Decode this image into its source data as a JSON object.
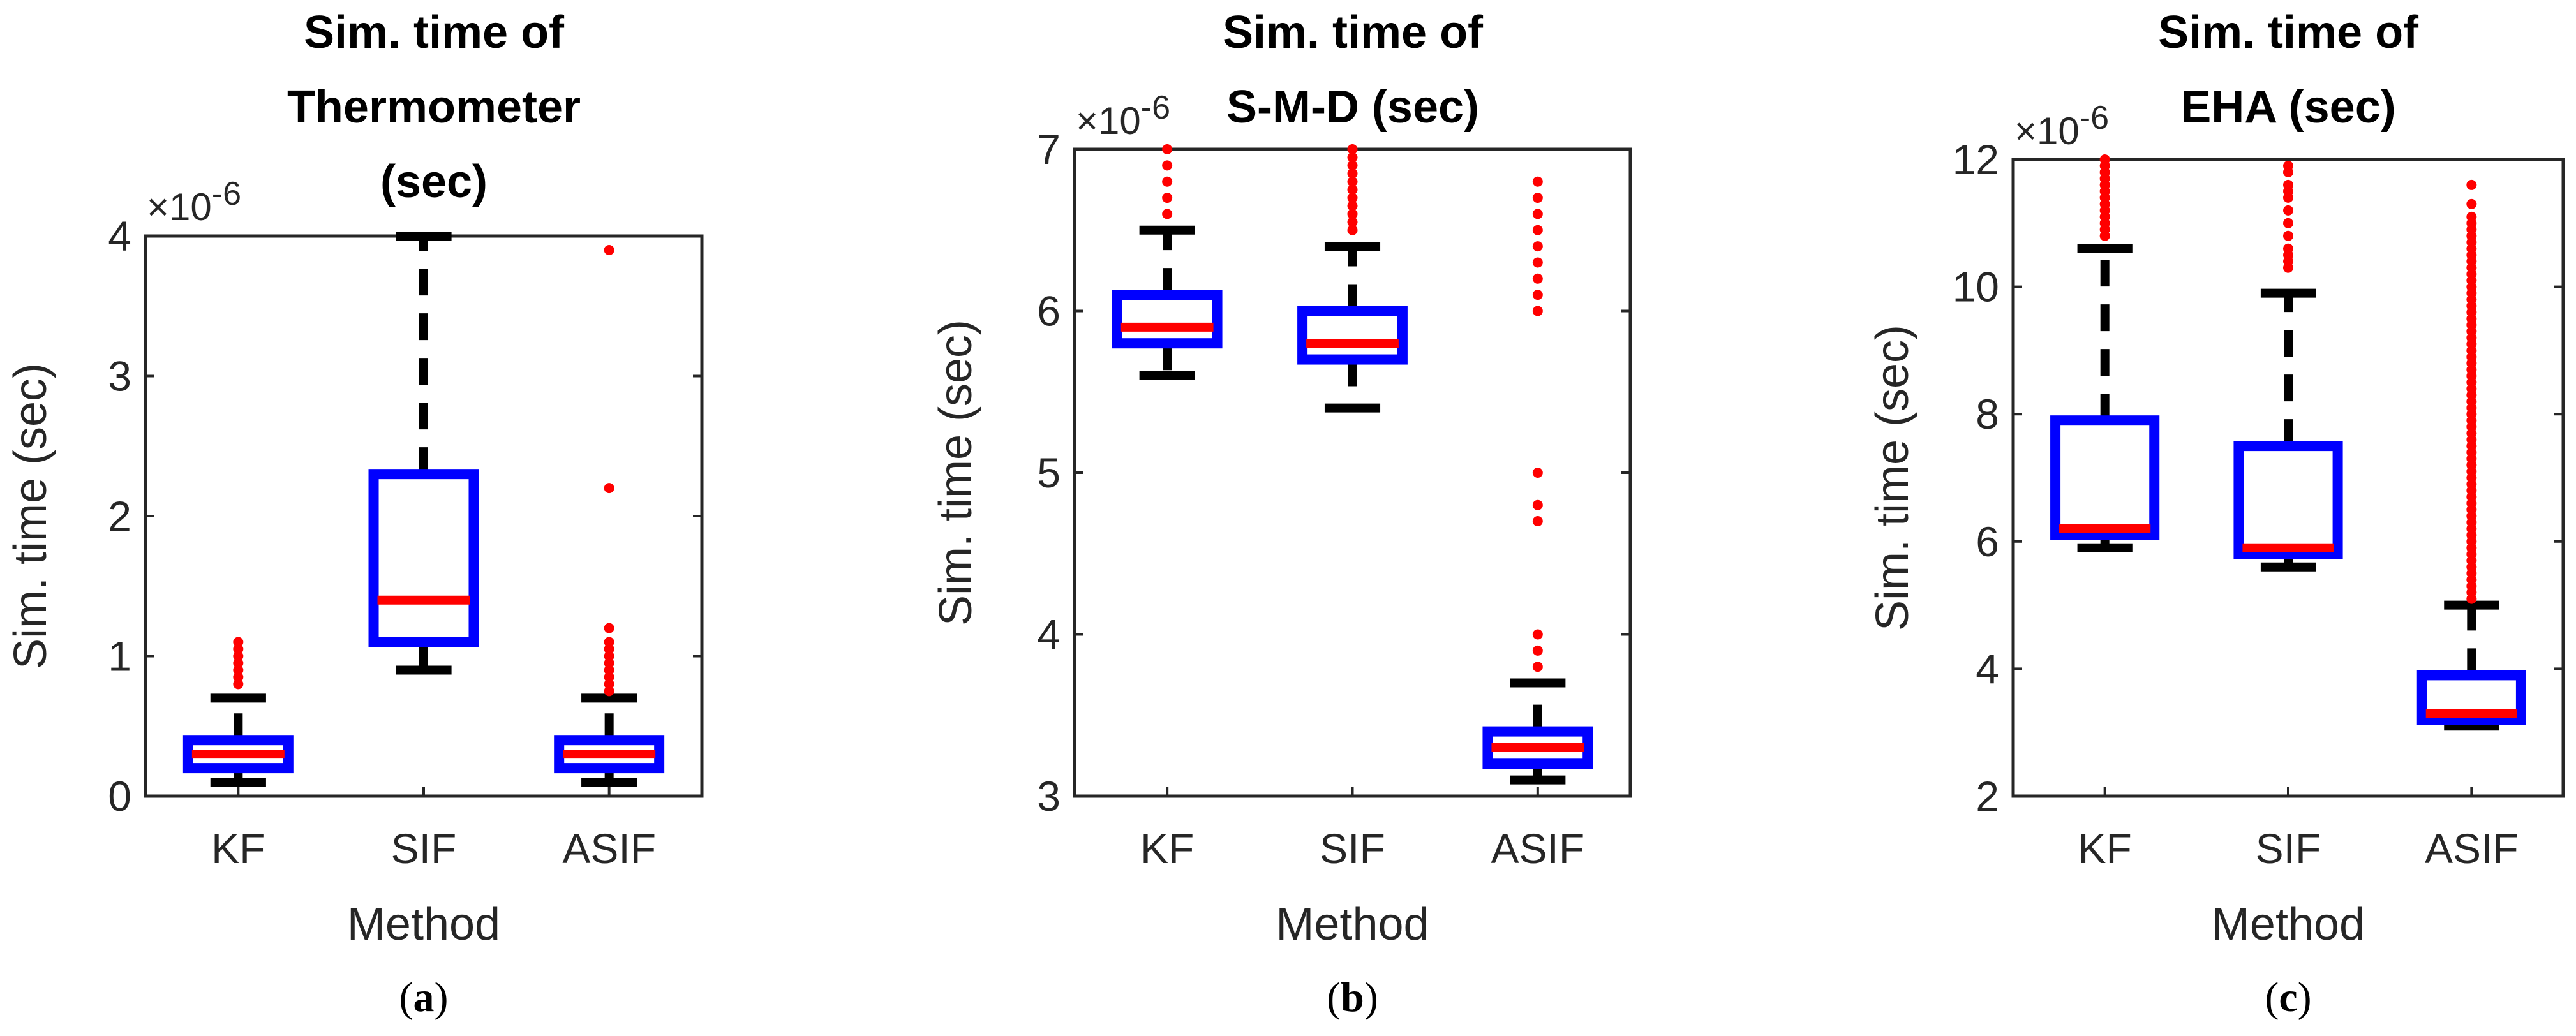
{
  "chart_data": [
    {
      "type": "box",
      "panel_label": {
        "open": "(",
        "letter": "a",
        "close": ")"
      },
      "title_lines": [
        "Sim. time of",
        "Thermometer",
        "(sec)"
      ],
      "xlabel": "Method",
      "ylabel": "Sim. time (sec)",
      "exponent": "×10",
      "exponent_power": "-6",
      "ylim": [
        0,
        4
      ],
      "yticks": [
        0,
        1,
        2,
        3,
        4
      ],
      "ytick_labels": [
        "0",
        "1",
        "2",
        "3",
        "4"
      ],
      "categories": [
        "KF",
        "SIF",
        "ASIF"
      ],
      "boxes": [
        {
          "q1": 0.2,
          "median": 0.3,
          "q3": 0.4,
          "whisker_low": 0.1,
          "whisker_high": 0.7,
          "outliers": [
            0.8,
            0.85,
            0.9,
            0.95,
            1.0,
            1.05,
            1.1
          ]
        },
        {
          "q1": 1.1,
          "median": 1.4,
          "q3": 2.3,
          "whisker_low": 0.9,
          "whisker_high": 4.0,
          "outliers": []
        },
        {
          "q1": 0.2,
          "median": 0.3,
          "q3": 0.4,
          "whisker_low": 0.1,
          "whisker_high": 0.7,
          "outliers": [
            0.75,
            0.8,
            0.85,
            0.9,
            0.95,
            1.0,
            1.05,
            1.1,
            1.2,
            2.2,
            3.9
          ]
        }
      ]
    },
    {
      "type": "box",
      "panel_label": {
        "open": "(",
        "letter": "b",
        "close": ")"
      },
      "title_lines": [
        "Sim. time of",
        "S-M-D (sec)"
      ],
      "xlabel": "Method",
      "ylabel": "Sim. time (sec)",
      "exponent": "×10",
      "exponent_power": "-6",
      "ylim": [
        3,
        7
      ],
      "yticks": [
        3,
        4,
        5,
        6,
        7
      ],
      "ytick_labels": [
        "3",
        "4",
        "5",
        "6",
        "7"
      ],
      "categories": [
        "KF",
        "SIF",
        "ASIF"
      ],
      "boxes": [
        {
          "q1": 5.8,
          "median": 5.9,
          "q3": 6.1,
          "whisker_low": 5.6,
          "whisker_high": 6.5,
          "outliers": [
            6.6,
            6.7,
            6.8,
            6.9,
            7.0
          ]
        },
        {
          "q1": 5.7,
          "median": 5.8,
          "q3": 6.0,
          "whisker_low": 5.4,
          "whisker_high": 6.4,
          "outliers": [
            6.5,
            6.55,
            6.6,
            6.65,
            6.7,
            6.75,
            6.8,
            6.85,
            6.9,
            6.95,
            7.0
          ]
        },
        {
          "q1": 3.2,
          "median": 3.3,
          "q3": 3.4,
          "whisker_low": 3.1,
          "whisker_high": 3.7,
          "outliers": [
            3.8,
            3.9,
            4.0,
            4.7,
            4.8,
            5.0,
            6.0,
            6.1,
            6.2,
            6.3,
            6.4,
            6.5,
            6.6,
            6.7,
            6.8
          ]
        }
      ]
    },
    {
      "type": "box",
      "panel_label": {
        "open": "(",
        "letter": "c",
        "close": ")"
      },
      "title_lines": [
        "Sim. time of",
        "EHA (sec)"
      ],
      "xlabel": "Method",
      "ylabel": "Sim. time (sec)",
      "exponent": "×10",
      "exponent_power": "-6",
      "ylim": [
        2,
        12
      ],
      "yticks": [
        2,
        4,
        6,
        8,
        10,
        12
      ],
      "ytick_labels": [
        "2",
        "4",
        "6",
        "8",
        "10",
        "12"
      ],
      "categories": [
        "KF",
        "SIF",
        "ASIF"
      ],
      "boxes": [
        {
          "q1": 6.1,
          "median": 6.2,
          "q3": 7.9,
          "whisker_low": 5.9,
          "whisker_high": 10.6,
          "outliers": [
            10.8,
            10.9,
            11.0,
            11.1,
            11.2,
            11.3,
            11.4,
            11.5,
            11.6,
            11.7,
            11.8,
            11.9,
            12.0
          ]
        },
        {
          "q1": 5.8,
          "median": 5.9,
          "q3": 7.5,
          "whisker_low": 5.6,
          "whisker_high": 9.9,
          "outliers": [
            10.3,
            10.4,
            10.5,
            10.6,
            10.8,
            11.0,
            11.2,
            11.4,
            11.5,
            11.6,
            11.8,
            11.9
          ]
        },
        {
          "q1": 3.2,
          "median": 3.3,
          "q3": 3.9,
          "whisker_low": 3.1,
          "whisker_high": 5.0,
          "outliers": [
            5.1,
            5.2,
            5.3,
            5.4,
            5.5,
            5.6,
            5.7,
            5.8,
            5.9,
            6.0,
            6.1,
            6.2,
            6.3,
            6.4,
            6.5,
            6.6,
            6.7,
            6.8,
            6.9,
            7.0,
            7.1,
            7.2,
            7.3,
            7.4,
            7.5,
            7.6,
            7.7,
            7.8,
            7.9,
            8.0,
            8.1,
            8.2,
            8.3,
            8.4,
            8.5,
            8.6,
            8.7,
            8.8,
            8.9,
            9.0,
            9.1,
            9.2,
            9.3,
            9.4,
            9.5,
            9.6,
            9.7,
            9.8,
            9.9,
            10.0,
            10.1,
            10.2,
            10.3,
            10.4,
            10.5,
            10.6,
            10.7,
            10.8,
            10.9,
            11.0,
            11.1,
            11.3,
            11.6
          ]
        }
      ]
    }
  ],
  "colors": {
    "box": "#0000ff",
    "median": "#ff0000",
    "whisker": "#000000",
    "outlier": "#ff0000",
    "axis": "#262626"
  }
}
